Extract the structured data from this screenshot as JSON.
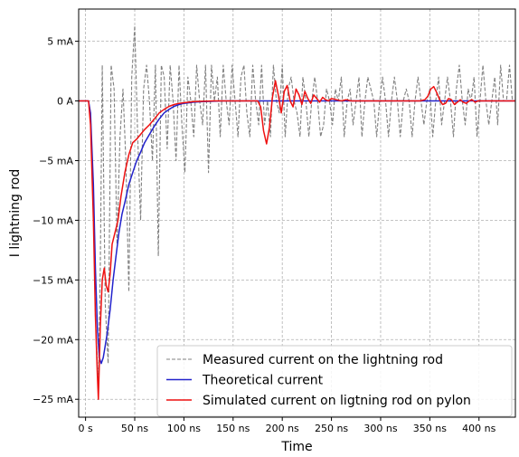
{
  "chart_data": {
    "type": "line",
    "title": "",
    "xlabel": "Time",
    "ylabel": "I lightning rod",
    "xlim": [
      -7,
      437
    ],
    "ylim": [
      -26.5,
      7.7
    ],
    "grid": true,
    "legend_position": "bottom-right",
    "x_ticks": [
      0,
      50,
      100,
      150,
      200,
      250,
      300,
      350,
      400
    ],
    "x_tick_labels": [
      "0 s",
      "50 ns",
      "100 ns",
      "150 ns",
      "200 ns",
      "250 ns",
      "300 ns",
      "350 ns",
      "400 ns"
    ],
    "y_ticks": [
      5,
      0,
      -5,
      -10,
      -15,
      -20,
      -25
    ],
    "y_tick_labels": [
      "5 mA",
      "0 A",
      "−5 mA",
      "−10 mA",
      "−15 mA",
      "−20 mA",
      "−25 mA"
    ],
    "series": [
      {
        "name": "Measured current on the lightning rod",
        "color": "#808080",
        "style": "dashed",
        "x": [
          -7,
          3,
          5,
          8,
          10,
          13,
          15,
          17,
          20,
          23,
          26,
          29,
          32,
          35,
          38,
          41,
          44,
          47,
          50,
          53,
          56,
          59,
          62,
          65,
          68,
          71,
          74,
          77,
          80,
          83,
          86,
          89,
          92,
          95,
          98,
          101,
          104,
          107,
          110,
          113,
          116,
          119,
          122,
          125,
          128,
          131,
          134,
          137,
          140,
          143,
          146,
          149,
          152,
          155,
          158,
          161,
          164,
          167,
          170,
          173,
          176,
          179,
          182,
          185,
          188,
          191,
          194,
          197,
          200,
          203,
          206,
          209,
          212,
          215,
          218,
          221,
          224,
          227,
          230,
          233,
          236,
          239,
          242,
          245,
          248,
          251,
          254,
          257,
          260,
          263,
          266,
          269,
          272,
          275,
          278,
          281,
          284,
          287,
          290,
          293,
          296,
          299,
          302,
          305,
          308,
          311,
          314,
          317,
          320,
          323,
          326,
          329,
          332,
          335,
          338,
          341,
          344,
          347,
          350,
          353,
          356,
          359,
          362,
          365,
          368,
          371,
          374,
          377,
          380,
          383,
          386,
          389,
          392,
          395,
          398,
          401,
          404,
          407,
          410,
          413,
          416,
          419,
          422,
          425,
          428,
          431,
          434,
          437
        ],
        "y": [
          0,
          0,
          -1,
          -8,
          -18,
          -24,
          -14,
          3,
          -17,
          -22,
          3,
          1,
          -12,
          -3,
          1,
          -5,
          -16,
          2,
          6.3,
          -3,
          -10,
          1,
          3,
          0,
          -5,
          3,
          -13,
          3,
          2,
          -4,
          3,
          0,
          -5,
          3,
          -2,
          -6,
          2,
          0,
          -3,
          3,
          0,
          -2,
          3,
          -6,
          3,
          0,
          2,
          -3,
          3,
          0,
          -2,
          3,
          0,
          -3,
          2,
          3,
          -1,
          -3,
          3,
          0,
          -2,
          3,
          -2,
          0,
          -3,
          3,
          0,
          -1,
          3,
          -3,
          1,
          2,
          0,
          -1,
          -3,
          2,
          0,
          -3,
          0,
          2,
          0,
          -3,
          -2,
          1,
          0,
          -2,
          1,
          0,
          2,
          -3,
          0,
          1,
          -2,
          0,
          2,
          -3,
          0,
          2,
          1,
          0,
          -3,
          0,
          2,
          0,
          -3,
          0,
          2,
          0,
          -3,
          0,
          1,
          0,
          -3,
          0,
          2,
          0,
          -2,
          0,
          1,
          -3,
          0,
          2,
          -2,
          0,
          2,
          0,
          -3,
          1,
          3,
          0,
          -2,
          1,
          0,
          2,
          -3,
          0,
          3,
          0,
          -2,
          0,
          2,
          -2,
          3,
          0,
          0,
          3,
          0,
          0
        ]
      },
      {
        "name": "Theoretical current",
        "color": "#2222cc",
        "style": "solid",
        "x": [
          -7,
          3,
          5,
          8,
          10,
          12,
          14,
          16,
          18,
          20,
          22,
          25,
          28,
          31,
          34,
          37,
          40,
          44,
          48,
          52,
          56,
          60,
          65,
          70,
          75,
          80,
          85,
          90,
          95,
          100,
          110,
          120,
          140,
          180,
          250,
          350,
          437
        ],
        "y": [
          0,
          0,
          -1,
          -7,
          -14,
          -19,
          -21.5,
          -22,
          -21.5,
          -20.5,
          -19.5,
          -17.5,
          -15,
          -13,
          -11,
          -9.5,
          -8.5,
          -7,
          -6,
          -5,
          -4.3,
          -3.5,
          -2.8,
          -2.1,
          -1.5,
          -1.0,
          -0.7,
          -0.45,
          -0.3,
          -0.2,
          -0.1,
          -0.05,
          0,
          0,
          0,
          0,
          0
        ]
      },
      {
        "name": "Simulated current on ligtning rod on pylon",
        "color": "#ee1111",
        "style": "solid",
        "x": [
          -7,
          3,
          5,
          8,
          10,
          12,
          13,
          15,
          17,
          19,
          21,
          23,
          25,
          27,
          30,
          33,
          36,
          40,
          44,
          48,
          52,
          56,
          60,
          65,
          70,
          75,
          80,
          85,
          90,
          95,
          100,
          110,
          130,
          160,
          175,
          178,
          181,
          184,
          187,
          190,
          193,
          196,
          199,
          202,
          205,
          208,
          211,
          214,
          217,
          220,
          223,
          226,
          229,
          232,
          235,
          238,
          241,
          244,
          247,
          250,
          255,
          260,
          265,
          270,
          280,
          290,
          300,
          320,
          340,
          345,
          348,
          351,
          354,
          357,
          360,
          363,
          366,
          369,
          372,
          375,
          378,
          381,
          384,
          387,
          390,
          393,
          396,
          399,
          402,
          405,
          410,
          415,
          420,
          425,
          430,
          437
        ],
        "y": [
          0,
          0,
          -2,
          -10,
          -18,
          -23,
          -25,
          -19,
          -15,
          -14,
          -15.5,
          -16,
          -14.5,
          -12,
          -11,
          -10,
          -8,
          -6,
          -4.5,
          -3.5,
          -3.2,
          -2.8,
          -2.4,
          -2.0,
          -1.5,
          -1.0,
          -0.7,
          -0.45,
          -0.3,
          -0.2,
          -0.15,
          -0.05,
          0,
          0,
          0,
          -0.5,
          -2.5,
          -3.6,
          -2.2,
          0.3,
          1.7,
          0.5,
          -1.0,
          0.8,
          1.3,
          0,
          -0.5,
          1.0,
          0.5,
          -0.3,
          0.8,
          0.2,
          -0.2,
          0.5,
          0.2,
          -0.1,
          0.3,
          0.1,
          0,
          0.2,
          0.1,
          0,
          0.1,
          0,
          0,
          0,
          0,
          0,
          0,
          0.1,
          0.4,
          1.0,
          1.2,
          0.7,
          0.1,
          -0.3,
          -0.2,
          0.2,
          0.1,
          -0.3,
          -0.1,
          0.1,
          -0.1,
          -0.2,
          0,
          0.1,
          -0.1,
          0,
          0,
          0,
          0,
          0,
          0,
          0,
          0,
          0
        ]
      }
    ]
  }
}
